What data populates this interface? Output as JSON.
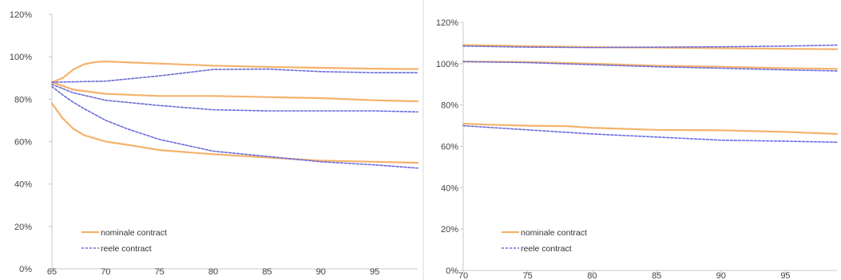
{
  "colors": {
    "nominal": "#f5b26b",
    "real": "#6b6bdc",
    "axis": "#c8c8c8",
    "divider": "#d8d8d8",
    "text": "#444444"
  },
  "chart_data": [
    {
      "type": "line",
      "title": "",
      "xlabel": "",
      "ylabel": "",
      "xlim": [
        65,
        99
      ],
      "ylim": [
        0,
        120
      ],
      "x_ticks": [
        65,
        70,
        75,
        80,
        85,
        90,
        95
      ],
      "x_tick_labels": [
        "65",
        "70",
        "75",
        "80",
        "85",
        "90",
        "95"
      ],
      "y_ticks": [
        0,
        20,
        40,
        60,
        80,
        100,
        120
      ],
      "y_tick_labels": [
        "0%",
        "20%",
        "40%",
        "60%",
        "80%",
        "100%",
        "120%"
      ],
      "grid": false,
      "legend": {
        "placement": "bottom-left",
        "entries": [
          "nominale contract",
          "reele contract"
        ]
      },
      "series": [
        {
          "name": "nominale contract",
          "style": "solid",
          "x": [
            65,
            66,
            67,
            68,
            69,
            70,
            72,
            75,
            80,
            85,
            90,
            95,
            99
          ],
          "y": [
            88,
            90,
            94,
            96.5,
            97.5,
            97.8,
            97.4,
            96.8,
            95.8,
            95.2,
            94.8,
            94.4,
            94.2
          ]
        },
        {
          "name": "",
          "style": "solid",
          "x": [
            65,
            67,
            70,
            75,
            80,
            85,
            90,
            95,
            99
          ],
          "y": [
            88,
            84.5,
            82.5,
            81.5,
            81.5,
            81,
            80.5,
            79.5,
            79
          ]
        },
        {
          "name": "",
          "style": "solid",
          "x": [
            65,
            66,
            67,
            68,
            70,
            72,
            75,
            80,
            85,
            90,
            95,
            99
          ],
          "y": [
            78,
            71,
            66,
            63,
            60,
            58.5,
            56,
            54,
            52.5,
            51,
            50.5,
            50
          ]
        },
        {
          "name": "reele contract",
          "style": "dashed",
          "x": [
            65,
            70,
            75,
            80,
            85,
            90,
            95,
            99
          ],
          "y": [
            88,
            88.5,
            91,
            94,
            94.2,
            93,
            92.5,
            92.5
          ]
        },
        {
          "name": "",
          "style": "dashed",
          "x": [
            65,
            67,
            70,
            75,
            80,
            85,
            90,
            95,
            99
          ],
          "y": [
            87,
            83,
            79.5,
            77,
            75,
            74.5,
            74.5,
            74.5,
            74
          ]
        },
        {
          "name": "",
          "style": "dashed",
          "x": [
            65,
            66,
            67,
            68,
            70,
            72,
            75,
            80,
            85,
            90,
            95,
            99
          ],
          "y": [
            86,
            82,
            78.5,
            75.5,
            70,
            66,
            61,
            55.5,
            53,
            50.5,
            49,
            47.5
          ]
        }
      ]
    },
    {
      "type": "line",
      "title": "",
      "xlabel": "",
      "ylabel": "",
      "xlim": [
        70,
        99
      ],
      "ylim": [
        0,
        120
      ],
      "x_ticks": [
        70,
        75,
        80,
        85,
        90,
        95
      ],
      "x_tick_labels": [
        "70",
        "75",
        "80",
        "85",
        "90",
        "95"
      ],
      "y_ticks": [
        0,
        20,
        40,
        60,
        80,
        100,
        120
      ],
      "y_tick_labels": [
        "0%",
        "20%",
        "40%",
        "60%",
        "80%",
        "100%",
        "120%"
      ],
      "grid": false,
      "legend": {
        "placement": "bottom-left",
        "entries": [
          "nominale contract",
          "reele contract"
        ]
      },
      "series": [
        {
          "name": "nominale contract",
          "style": "solid",
          "x": [
            70,
            75,
            80,
            85,
            90,
            95,
            99
          ],
          "y": [
            109,
            108.5,
            108,
            107.8,
            107.5,
            107.2,
            107
          ]
        },
        {
          "name": "",
          "style": "solid",
          "x": [
            70,
            75,
            80,
            85,
            90,
            95,
            99
          ],
          "y": [
            101,
            100.8,
            100,
            99,
            98.5,
            97.8,
            97.5
          ]
        },
        {
          "name": "",
          "style": "solid",
          "x": [
            70,
            72,
            75,
            78,
            80,
            85,
            90,
            95,
            99
          ],
          "y": [
            71,
            70.5,
            70,
            69.8,
            69,
            68,
            67.8,
            67,
            66
          ]
        },
        {
          "name": "reele contract",
          "style": "dashed",
          "x": [
            70,
            75,
            80,
            85,
            90,
            95,
            99
          ],
          "y": [
            108.5,
            108,
            107.8,
            108,
            108.2,
            108.5,
            109
          ]
        },
        {
          "name": "",
          "style": "dashed",
          "x": [
            70,
            75,
            80,
            85,
            90,
            95,
            99
          ],
          "y": [
            101,
            100.5,
            99.5,
            98.5,
            97.8,
            97,
            96.5
          ]
        },
        {
          "name": "",
          "style": "dashed",
          "x": [
            70,
            75,
            80,
            85,
            90,
            95,
            99
          ],
          "y": [
            70,
            68,
            66,
            64.5,
            63,
            62.5,
            62
          ]
        }
      ]
    }
  ]
}
